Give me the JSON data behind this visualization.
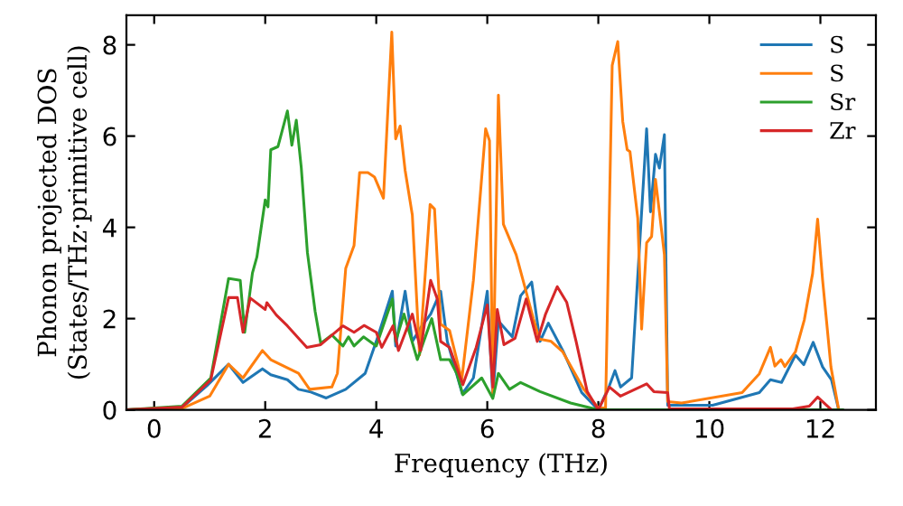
{
  "chart_data": {
    "type": "line",
    "xlabel": "Frequency (THz)",
    "ylabel": "Phonon projected DOS\n(States/THz·primitive cell)",
    "xlim": [
      -0.5,
      13
    ],
    "ylim": [
      0,
      8.65
    ],
    "xticks": [
      0,
      2,
      4,
      6,
      8,
      10,
      12
    ],
    "yticks": [
      0,
      2,
      4,
      6,
      8
    ],
    "grid": false,
    "legend": "top right",
    "marker": "none",
    "line_style": "solid",
    "series": [
      {
        "name": "S",
        "color": "#1f77b4",
        "x": [
          -0.5,
          0.5,
          0.95,
          1.34,
          1.6,
          1.95,
          2.1,
          2.4,
          2.6,
          2.8,
          3.1,
          3.45,
          3.8,
          4.0,
          4.29,
          4.35,
          4.52,
          4.65,
          4.8,
          4.98,
          5.16,
          5.28,
          5.55,
          5.75,
          6.0,
          6.1,
          6.2,
          6.45,
          6.6,
          6.8,
          6.95,
          7.1,
          7.36,
          7.7,
          8.0,
          8.2,
          8.3,
          8.4,
          8.6,
          8.87,
          8.94,
          9.03,
          9.1,
          9.19,
          9.25,
          10.06,
          10.9,
          11.1,
          11.3,
          11.55,
          11.7,
          11.87,
          12.04,
          12.2,
          12.33
        ],
        "values": [
          0,
          0.05,
          0.53,
          1.0,
          0.6,
          0.9,
          0.77,
          0.66,
          0.45,
          0.4,
          0.26,
          0.45,
          0.8,
          1.5,
          2.6,
          1.4,
          2.6,
          1.5,
          1.8,
          2.1,
          2.6,
          1.5,
          0.35,
          0.7,
          2.6,
          0.3,
          1.95,
          1.6,
          2.5,
          2.8,
          1.5,
          1.9,
          1.3,
          0.38,
          0,
          0.53,
          0.86,
          0.5,
          0.7,
          6.16,
          4.34,
          5.6,
          5.3,
          6.03,
          0.1,
          0.1,
          0.38,
          0.66,
          0.6,
          1.2,
          0.99,
          1.48,
          0.94,
          0.66,
          0
        ]
      },
      {
        "name": "S",
        "color": "#ff7f0e",
        "x": [
          -0.5,
          0.5,
          1.0,
          1.34,
          1.6,
          1.95,
          2.1,
          2.6,
          2.8,
          3.2,
          3.3,
          3.45,
          3.6,
          3.7,
          3.85,
          3.97,
          4.13,
          4.28,
          4.35,
          4.43,
          4.52,
          4.65,
          4.78,
          4.97,
          5.05,
          5.16,
          5.32,
          5.54,
          5.75,
          5.97,
          6.04,
          6.1,
          6.2,
          6.29,
          6.52,
          6.83,
          6.94,
          7.15,
          7.36,
          7.74,
          8.0,
          8.13,
          8.25,
          8.35,
          8.44,
          8.52,
          8.57,
          8.71,
          8.78,
          8.87,
          8.96,
          9.03,
          9.1,
          9.19,
          9.25,
          9.5,
          10.59,
          10.9,
          11.1,
          11.18,
          11.29,
          11.36,
          11.55,
          11.71,
          11.86,
          11.95,
          12.04,
          12.19,
          12.33
        ],
        "values": [
          0,
          0.03,
          0.3,
          1.0,
          0.7,
          1.3,
          1.1,
          0.8,
          0.45,
          0.5,
          0.8,
          3.1,
          3.6,
          5.2,
          5.2,
          5.1,
          4.64,
          8.28,
          5.94,
          6.22,
          5.25,
          4.27,
          1.2,
          4.5,
          4.4,
          1.88,
          1.74,
          0.66,
          2.84,
          6.16,
          5.9,
          0.33,
          6.9,
          4.07,
          3.4,
          2.0,
          1.55,
          1.5,
          1.27,
          0.45,
          0.04,
          0.04,
          7.55,
          8.07,
          6.32,
          5.7,
          5.66,
          4.2,
          1.77,
          3.66,
          3.8,
          5.05,
          4.34,
          3.4,
          0.18,
          0.15,
          0.38,
          0.79,
          1.37,
          0.96,
          1.1,
          0.95,
          1.27,
          1.97,
          2.99,
          4.18,
          2.84,
          0.94,
          0
        ]
      },
      {
        "name": "Sr",
        "color": "#2ca02c",
        "x": [
          -0.5,
          0.5,
          1.02,
          1.34,
          1.55,
          1.63,
          1.77,
          1.85,
          2.0,
          2.05,
          2.1,
          2.23,
          2.4,
          2.48,
          2.56,
          2.65,
          2.76,
          2.9,
          3.0,
          3.2,
          3.4,
          3.5,
          3.6,
          3.77,
          4.0,
          4.29,
          4.35,
          4.5,
          4.74,
          5.0,
          5.16,
          5.32,
          5.45,
          5.56,
          5.9,
          6.1,
          6.2,
          6.4,
          6.6,
          6.95,
          7.5,
          8.0,
          12.4
        ],
        "values": [
          0,
          0.08,
          0.7,
          2.88,
          2.84,
          1.7,
          3.0,
          3.35,
          4.6,
          4.45,
          5.7,
          5.77,
          6.55,
          5.8,
          6.35,
          5.3,
          3.45,
          2.15,
          1.46,
          1.64,
          1.4,
          1.6,
          1.4,
          1.6,
          1.4,
          2.43,
          1.5,
          2.1,
          1.1,
          2.0,
          1.1,
          1.1,
          0.8,
          0.33,
          0.7,
          0.25,
          0.8,
          0.45,
          0.6,
          0.4,
          0.15,
          0,
          0
        ]
      },
      {
        "name": "Zr",
        "color": "#d62728",
        "x": [
          -0.5,
          0.5,
          1.02,
          1.34,
          1.5,
          1.6,
          1.73,
          2.0,
          2.03,
          2.2,
          2.4,
          2.75,
          3.0,
          3.4,
          3.6,
          3.78,
          4.0,
          4.1,
          4.3,
          4.4,
          4.65,
          4.8,
          4.98,
          5.1,
          5.16,
          5.32,
          5.56,
          5.8,
          6.0,
          6.1,
          6.18,
          6.3,
          6.5,
          6.7,
          6.9,
          7.05,
          7.26,
          7.43,
          7.6,
          7.8,
          8.0,
          8.2,
          8.4,
          8.87,
          9.0,
          9.25,
          9.28,
          11.5,
          11.8,
          11.95,
          12.2
        ],
        "values": [
          0,
          0.06,
          0.66,
          2.46,
          2.46,
          1.7,
          2.45,
          2.2,
          2.35,
          2.08,
          1.84,
          1.37,
          1.43,
          1.84,
          1.7,
          1.85,
          1.7,
          1.37,
          1.84,
          1.3,
          2.1,
          1.3,
          2.84,
          2.43,
          1.5,
          1.37,
          0.55,
          1.37,
          2.3,
          0.5,
          2.2,
          1.43,
          1.57,
          2.43,
          1.5,
          2.1,
          2.7,
          2.36,
          1.5,
          0.4,
          0,
          0.5,
          0.3,
          0.57,
          0.4,
          0.38,
          0.02,
          0.02,
          0.08,
          0.28,
          0
        ]
      }
    ]
  }
}
